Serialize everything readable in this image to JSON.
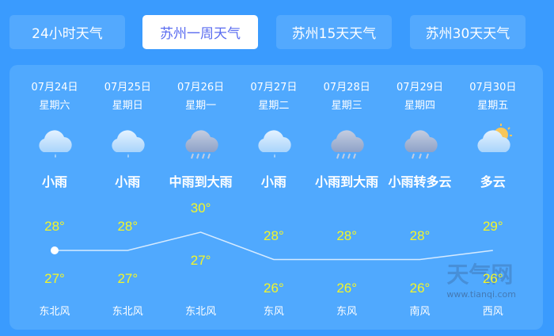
{
  "tabs": [
    {
      "label": "24小时天气",
      "active": false
    },
    {
      "label": "苏州一周天气",
      "active": true
    },
    {
      "label": "苏州15天天气",
      "active": false
    },
    {
      "label": "苏州30天天气",
      "active": false
    }
  ],
  "days": [
    {
      "date": "07月24日",
      "week": "星期六",
      "icon": "light-rain-icon",
      "desc": "小雨",
      "high": 28,
      "low": 27,
      "high_label": "28°",
      "low_label": "27°",
      "wind": "东北风"
    },
    {
      "date": "07月25日",
      "week": "星期日",
      "icon": "light-rain-icon",
      "desc": "小雨",
      "high": 28,
      "low": 27,
      "high_label": "28°",
      "low_label": "27°",
      "wind": "东北风"
    },
    {
      "date": "07月26日",
      "week": "星期一",
      "icon": "heavy-rain-icon",
      "desc": "中雨到大雨",
      "high": 30,
      "low": 27,
      "high_label": "30°",
      "low_label": "27°",
      "wind": "东北风"
    },
    {
      "date": "07月27日",
      "week": "星期二",
      "icon": "light-rain-icon",
      "desc": "小雨",
      "high": 28,
      "low": 26,
      "high_label": "28°",
      "low_label": "26°",
      "wind": "东风"
    },
    {
      "date": "07月28日",
      "week": "星期三",
      "icon": "heavy-rain-icon",
      "desc": "小雨到大雨",
      "high": 28,
      "low": 26,
      "high_label": "28°",
      "low_label": "26°",
      "wind": "东风"
    },
    {
      "date": "07月29日",
      "week": "星期四",
      "icon": "rain-icon",
      "desc": "小雨转多云",
      "high": 28,
      "low": 26,
      "high_label": "28°",
      "low_label": "26°",
      "wind": "南风"
    },
    {
      "date": "07月30日",
      "week": "星期五",
      "icon": "partly-cloudy-icon",
      "desc": "多云",
      "high": 29,
      "low": 26,
      "high_label": "29°",
      "low_label": "26°",
      "wind": "西风"
    }
  ],
  "watermark": {
    "text": "天气网",
    "url": "www.tianqi.com"
  },
  "colors": {
    "background": "#3a9bfe",
    "card": "#50a9fe",
    "temp": "#f4f626",
    "active_tab_text": "#5a6cf0"
  }
}
